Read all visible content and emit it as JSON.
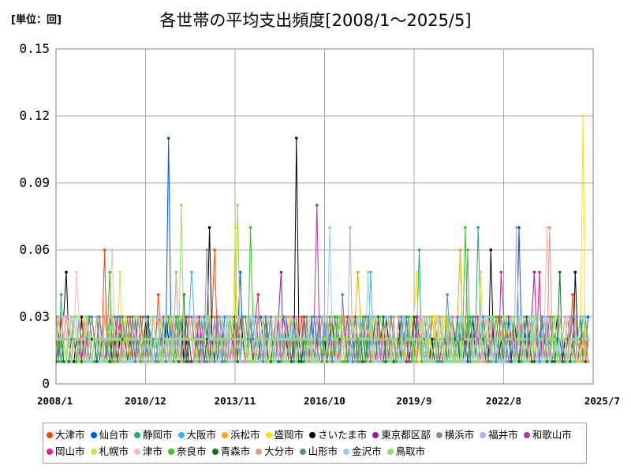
{
  "header": {
    "unit_label": "[単位：回]",
    "title": "各世帯の平均支出頻度[2008/1～2025/5]"
  },
  "chart_data": {
    "type": "line",
    "title": "各世帯の平均支出頻度[2008/1～2025/5]",
    "xlabel": "",
    "ylabel": "[単位：回]",
    "ylim": [
      0,
      0.15
    ],
    "yticks": [
      0,
      0.03,
      0.06,
      0.09,
      0.12,
      0.15
    ],
    "ytick_labels": [
      "0",
      "0.03",
      "0.06",
      "0.09",
      "0.12",
      "0.15"
    ],
    "xlim": [
      "2008/1",
      "2025/7"
    ],
    "xticks": [
      "2008/1",
      "2010/12",
      "2013/11",
      "2016/10",
      "2019/9",
      "2022/8",
      "2025/7"
    ],
    "grid": true,
    "legend_position": "bottom",
    "series": [
      {
        "name": "大津市",
        "color": "#ff4500",
        "baseline": 0.02,
        "peaks": [
          [
            "2009/8",
            0.06
          ],
          [
            "2011/5",
            0.04
          ],
          [
            "2013/3",
            0.06
          ],
          [
            "2018/6",
            0.03
          ],
          [
            "2024/11",
            0.04
          ]
        ]
      },
      {
        "name": "仙台市",
        "color": "#0055dd",
        "baseline": 0.02,
        "peaks": [
          [
            "2011/9",
            0.11
          ],
          [
            "2014/1",
            0.05
          ],
          [
            "2023/2",
            0.07
          ]
        ]
      },
      {
        "name": "静岡市",
        "color": "#22aa77",
        "baseline": 0.015,
        "peaks": [
          [
            "2008/3",
            0.04
          ],
          [
            "2019/11",
            0.06
          ],
          [
            "2021/10",
            0.07
          ]
        ]
      },
      {
        "name": "大阪市",
        "color": "#3cb4e6",
        "baseline": 0.02,
        "peaks": [
          [
            "2012/6",
            0.05
          ],
          [
            "2018/4",
            0.05
          ]
        ]
      },
      {
        "name": "浜松市",
        "color": "#f5a800",
        "baseline": 0.02,
        "peaks": [
          [
            "2017/11",
            0.05
          ],
          [
            "2021/3",
            0.06
          ]
        ]
      },
      {
        "name": "盛岡市",
        "color": "#ffe000",
        "baseline": 0.015,
        "peaks": [
          [
            "2013/11",
            0.07
          ],
          [
            "2019/10",
            0.05
          ],
          [
            "2025/3",
            0.12
          ]
        ]
      },
      {
        "name": "さいたま市",
        "color": "#000000",
        "baseline": 0.015,
        "peaks": [
          [
            "2008/5",
            0.05
          ],
          [
            "2013/1",
            0.07
          ],
          [
            "2015/11",
            0.11
          ],
          [
            "2022/3",
            0.06
          ],
          [
            "2024/12",
            0.05
          ]
        ]
      },
      {
        "name": "東京都区部",
        "color": "#a0199a",
        "baseline": 0.015,
        "peaks": [
          [
            "2015/5",
            0.05
          ],
          [
            "2023/8",
            0.05
          ]
        ]
      },
      {
        "name": "横浜市",
        "color": "#8c8c9c",
        "baseline": 0.02,
        "peaks": [
          [
            "2012/12",
            0.06
          ],
          [
            "2021/6",
            0.06
          ]
        ]
      },
      {
        "name": "福井市",
        "color": "#b9acd8",
        "baseline": 0.02,
        "peaks": [
          [
            "2017/8",
            0.07
          ],
          [
            "2023/1",
            0.07
          ]
        ]
      },
      {
        "name": "和歌山市",
        "color": "#aa3c96",
        "baseline": 0.02,
        "peaks": [
          [
            "2016/7",
            0.08
          ],
          [
            "2022/7",
            0.05
          ]
        ]
      },
      {
        "name": "岡山市",
        "color": "#e61e8c",
        "baseline": 0.015,
        "peaks": [
          [
            "2014/8",
            0.04
          ],
          [
            "2023/10",
            0.05
          ]
        ]
      },
      {
        "name": "札幌市",
        "color": "#dcdc50",
        "baseline": 0.02,
        "peaks": [
          [
            "2010/2",
            0.05
          ],
          [
            "2021/11",
            0.05
          ]
        ]
      },
      {
        "name": "津市",
        "color": "#f5b9c8",
        "baseline": 0.02,
        "peaks": [
          [
            "2008/9",
            0.05
          ],
          [
            "2009/11",
            0.06
          ],
          [
            "2024/1",
            0.07
          ]
        ]
      },
      {
        "name": "奈良市",
        "color": "#32c81e",
        "baseline": 0.015,
        "peaks": [
          [
            "2009/10",
            0.05
          ],
          [
            "2014/5",
            0.07
          ],
          [
            "2021/5",
            0.07
          ]
        ]
      },
      {
        "name": "青森市",
        "color": "#0f6e28",
        "baseline": 0.015,
        "peaks": [
          [
            "2012/3",
            0.04
          ],
          [
            "2024/6",
            0.05
          ]
        ]
      },
      {
        "name": "大分市",
        "color": "#d2a08c",
        "baseline": 0.02,
        "peaks": [
          [
            "2011/12",
            0.05
          ],
          [
            "2024/2",
            0.07
          ]
        ]
      },
      {
        "name": "山形市",
        "color": "#5a8caa",
        "baseline": 0.02,
        "peaks": [
          [
            "2017/5",
            0.04
          ],
          [
            "2020/10",
            0.04
          ]
        ]
      },
      {
        "name": "金沢市",
        "color": "#8cd2f0",
        "baseline": 0.02,
        "peaks": [
          [
            "2016/12",
            0.07
          ],
          [
            "2018/3",
            0.05
          ]
        ]
      },
      {
        "name": "鳥取市",
        "color": "#96dc6e",
        "baseline": 0.02,
        "peaks": [
          [
            "2012/2",
            0.08
          ],
          [
            "2013/12",
            0.08
          ]
        ]
      }
    ]
  }
}
